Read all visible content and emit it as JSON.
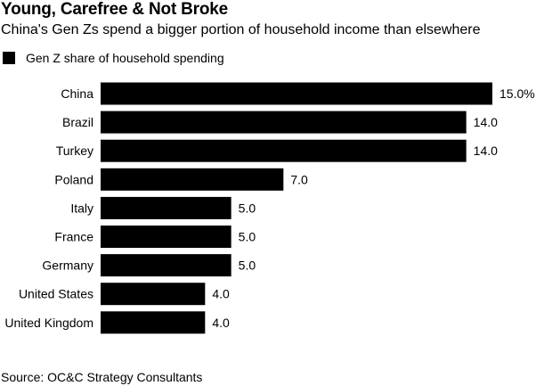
{
  "title": "Young, Carefree & Not Broke",
  "subtitle": "China's Gen Zs spend a bigger portion of household income than elsewhere",
  "legend": {
    "label": "Gen Z share of household spending"
  },
  "source": "Source: OC&C Strategy Consultants",
  "colors": {
    "bar": "#000000",
    "text": "#000000",
    "background": "#ffffff"
  },
  "chart_data": {
    "type": "bar",
    "orientation": "horizontal",
    "categories": [
      "China",
      "Brazil",
      "Turkey",
      "Poland",
      "Italy",
      "France",
      "Germany",
      "United States",
      "United Kingdom"
    ],
    "series": [
      {
        "name": "Gen Z share of household spending",
        "values": [
          15.0,
          14.0,
          14.0,
          7.0,
          5.0,
          5.0,
          5.0,
          4.0,
          4.0
        ]
      }
    ],
    "value_labels": [
      "15.0%",
      "14.0",
      "14.0",
      "7.0",
      "5.0",
      "5.0",
      "5.0",
      "4.0",
      "4.0"
    ],
    "title": "Young, Carefree & Not Broke",
    "subtitle": "China's Gen Zs spend a bigger portion of household income than elsewhere",
    "xlabel": "",
    "ylabel": "",
    "xlim": [
      0,
      15
    ],
    "grid": false,
    "legend_position": "top-left"
  }
}
